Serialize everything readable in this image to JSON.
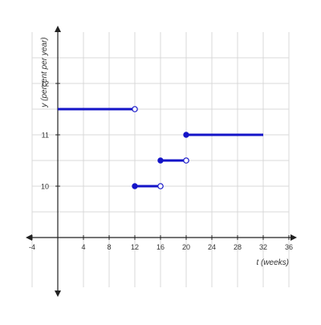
{
  "chart_data": {
    "type": "line",
    "title": "",
    "xlabel": "t (weeks)",
    "ylabel": "y (percent per year)",
    "xlim": [
      -4,
      36
    ],
    "ylim": [
      9,
      12.5
    ],
    "x_ticks": [
      -4,
      4,
      8,
      12,
      16,
      20,
      24,
      28,
      32,
      36
    ],
    "y_ticks": [
      10,
      11,
      12
    ],
    "grid": true,
    "series": [
      {
        "color": "#1414c8",
        "segments": [
          {
            "x0": 0,
            "x1": 12,
            "y": 11.5,
            "start": "none",
            "end": "open"
          },
          {
            "x0": 12,
            "x1": 16,
            "y": 10,
            "start": "closed",
            "end": "open"
          },
          {
            "x0": 16,
            "x1": 20,
            "y": 10.5,
            "start": "closed",
            "end": "open"
          },
          {
            "x0": 20,
            "x1": 32,
            "y": 11,
            "start": "closed",
            "end": "none"
          }
        ]
      }
    ],
    "colors": {
      "grid": "#d9d9d9",
      "axis": "#222222"
    }
  }
}
